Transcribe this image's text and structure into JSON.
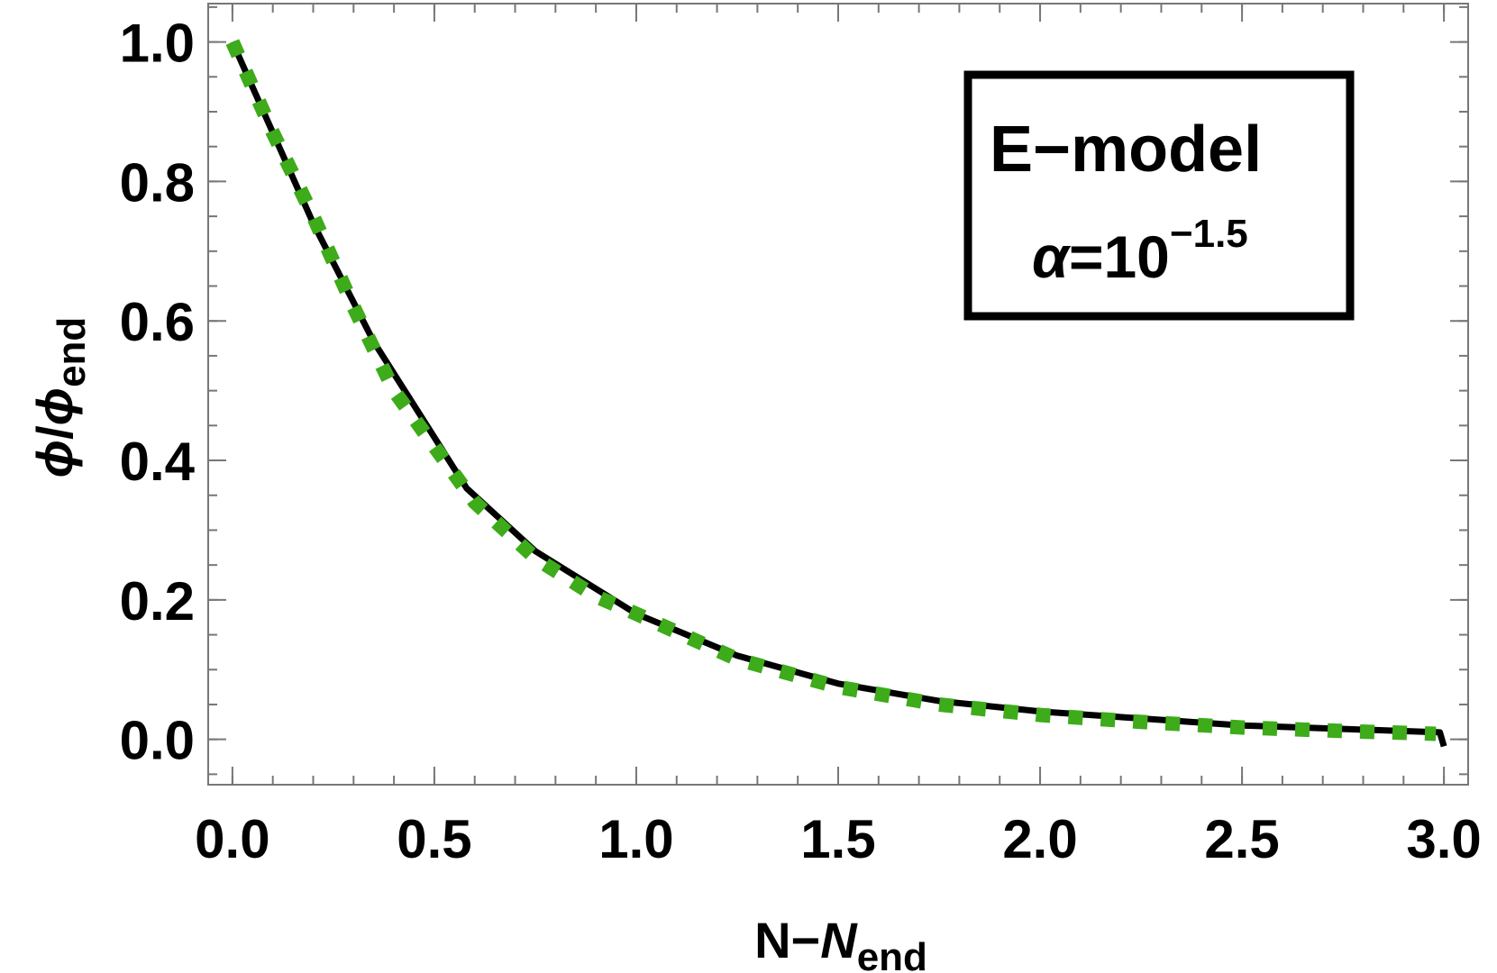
{
  "chart_data": {
    "type": "line",
    "xlim": [
      -0.06,
      3.06
    ],
    "ylim": [
      -0.065,
      1.055
    ],
    "x_ticks": [
      0.0,
      0.5,
      1.0,
      1.5,
      2.0,
      2.5,
      3.0
    ],
    "x_tick_labels": [
      "0.0",
      "0.5",
      "1.0",
      "1.5",
      "2.0",
      "2.5",
      "3.0"
    ],
    "y_ticks": [
      0.0,
      0.2,
      0.4,
      0.6,
      0.8,
      1.0
    ],
    "y_tick_labels": [
      "0.0",
      "0.2",
      "0.4",
      "0.6",
      "0.8",
      "1.0"
    ],
    "xlabel": {
      "main": "N−",
      "italic": "N",
      "sub": "end"
    },
    "ylabel": {
      "italic1": "ϕ",
      "slash": "/",
      "italic2": "ϕ",
      "sub": "end"
    },
    "legend": {
      "line1": "E−model",
      "line2": {
        "symbol": "α",
        "rest": "=10",
        "sup": "−1.5"
      },
      "position": "top-right"
    },
    "grid": false,
    "series": [
      {
        "style": "solid",
        "color": "#000000",
        "x": [
          0.0,
          0.1,
          0.2,
          0.35,
          0.58,
          0.75,
          1.0,
          1.25,
          1.5,
          1.75,
          2.0,
          2.25,
          2.5,
          2.75,
          2.99,
          3.0
        ],
        "y": [
          1.0,
          0.87,
          0.74,
          0.57,
          0.36,
          0.27,
          0.18,
          0.12,
          0.08,
          0.055,
          0.04,
          0.03,
          0.02,
          0.015,
          0.01,
          -0.01
        ]
      },
      {
        "style": "dotted",
        "color": "#3eab1a",
        "x": [
          0.0,
          0.1,
          0.2,
          0.3,
          0.4,
          0.5,
          0.6,
          0.75,
          0.9,
          1.0,
          1.25,
          1.5,
          1.75,
          2.0,
          2.25,
          2.5,
          2.75,
          2.98
        ],
        "y": [
          1.0,
          0.87,
          0.75,
          0.62,
          0.5,
          0.42,
          0.34,
          0.26,
          0.205,
          0.18,
          0.115,
          0.075,
          0.05,
          0.035,
          0.025,
          0.017,
          0.012,
          0.008
        ]
      }
    ]
  }
}
